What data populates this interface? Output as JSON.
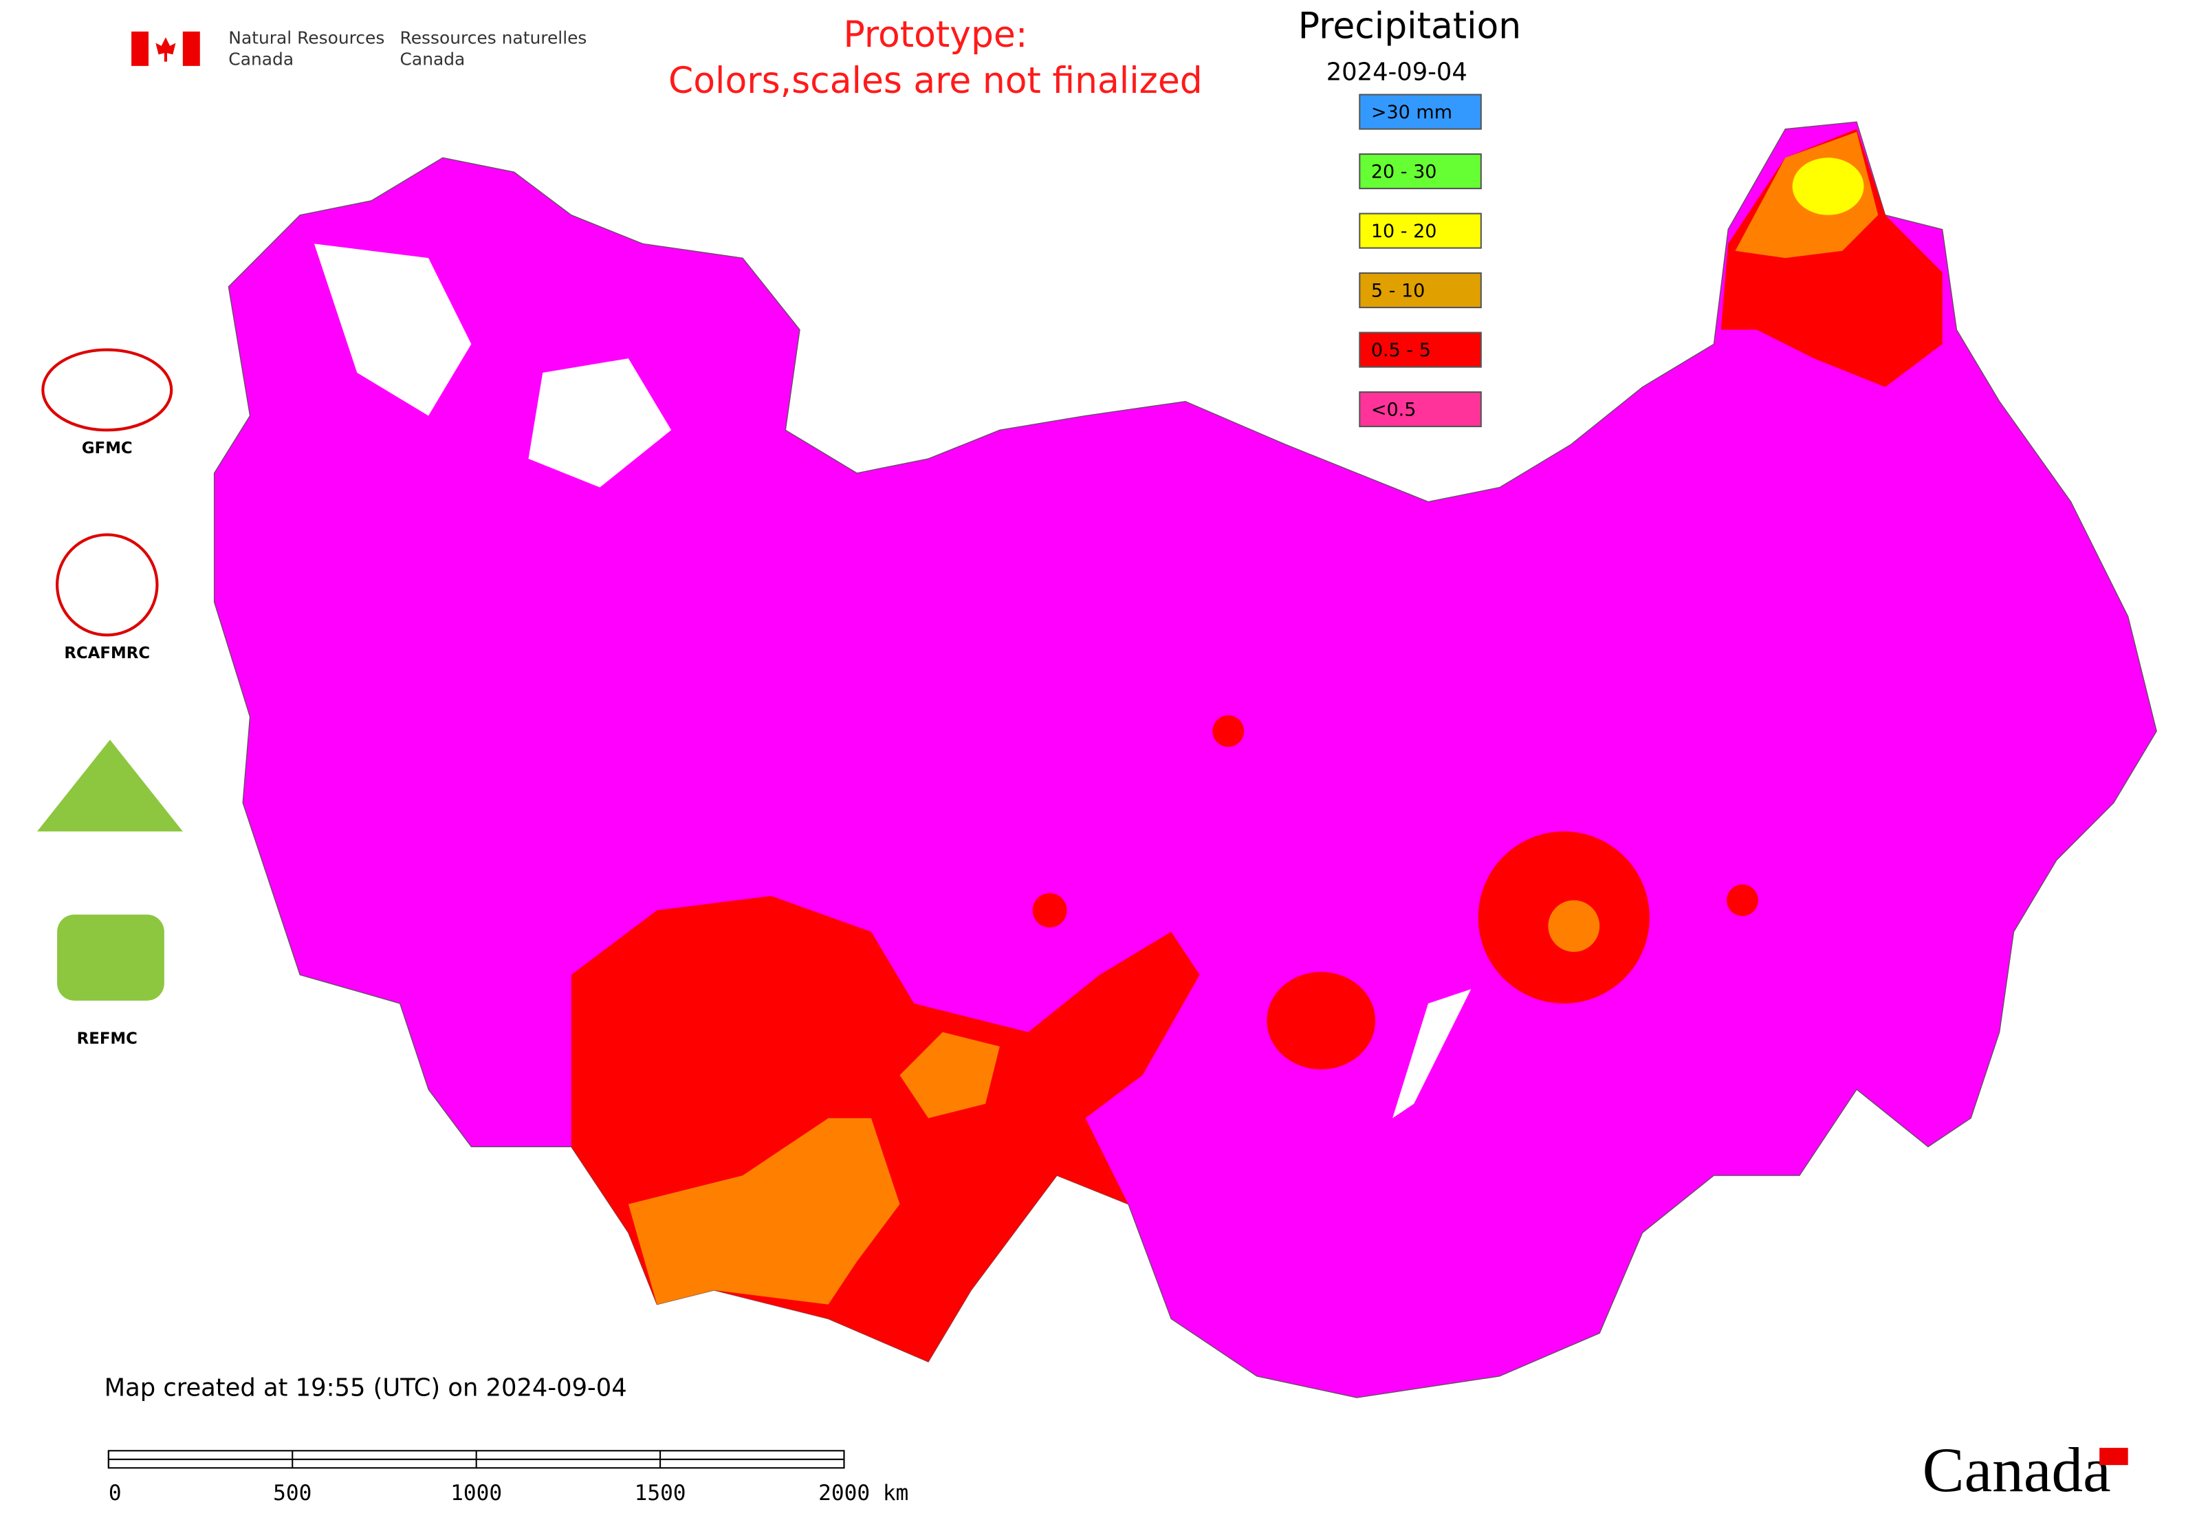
{
  "header": {
    "agency_en": [
      "Natural Resources",
      "Canada"
    ],
    "agency_fr": [
      "Ressources naturelles",
      "Canada"
    ],
    "notice": [
      "Prototype:",
      "Colors,scales are not finalized"
    ]
  },
  "legend": {
    "title": "Precipitation",
    "date": "2024-09-04",
    "items": [
      {
        "label": ">30 mm",
        "color": "#3399ff"
      },
      {
        "label": "20 - 30",
        "color": "#66ff33"
      },
      {
        "label": "10 - 20",
        "color": "#ffff00"
      },
      {
        "label": "5 - 10",
        "color": "#e0a000"
      },
      {
        "label": "0.5 - 5",
        "color": "#ff0000"
      },
      {
        "label": "<0.5",
        "color": "#ff3399"
      }
    ]
  },
  "logos": [
    "GFMC",
    "RCAFMRC",
    "REFMC"
  ],
  "footer": {
    "created": "Map created at 19:55 (UTC) on 2024-09-04",
    "scale_labels": [
      "0",
      "500",
      "1000",
      "1500",
      "2000 km"
    ],
    "wordmark": "Canada"
  }
}
